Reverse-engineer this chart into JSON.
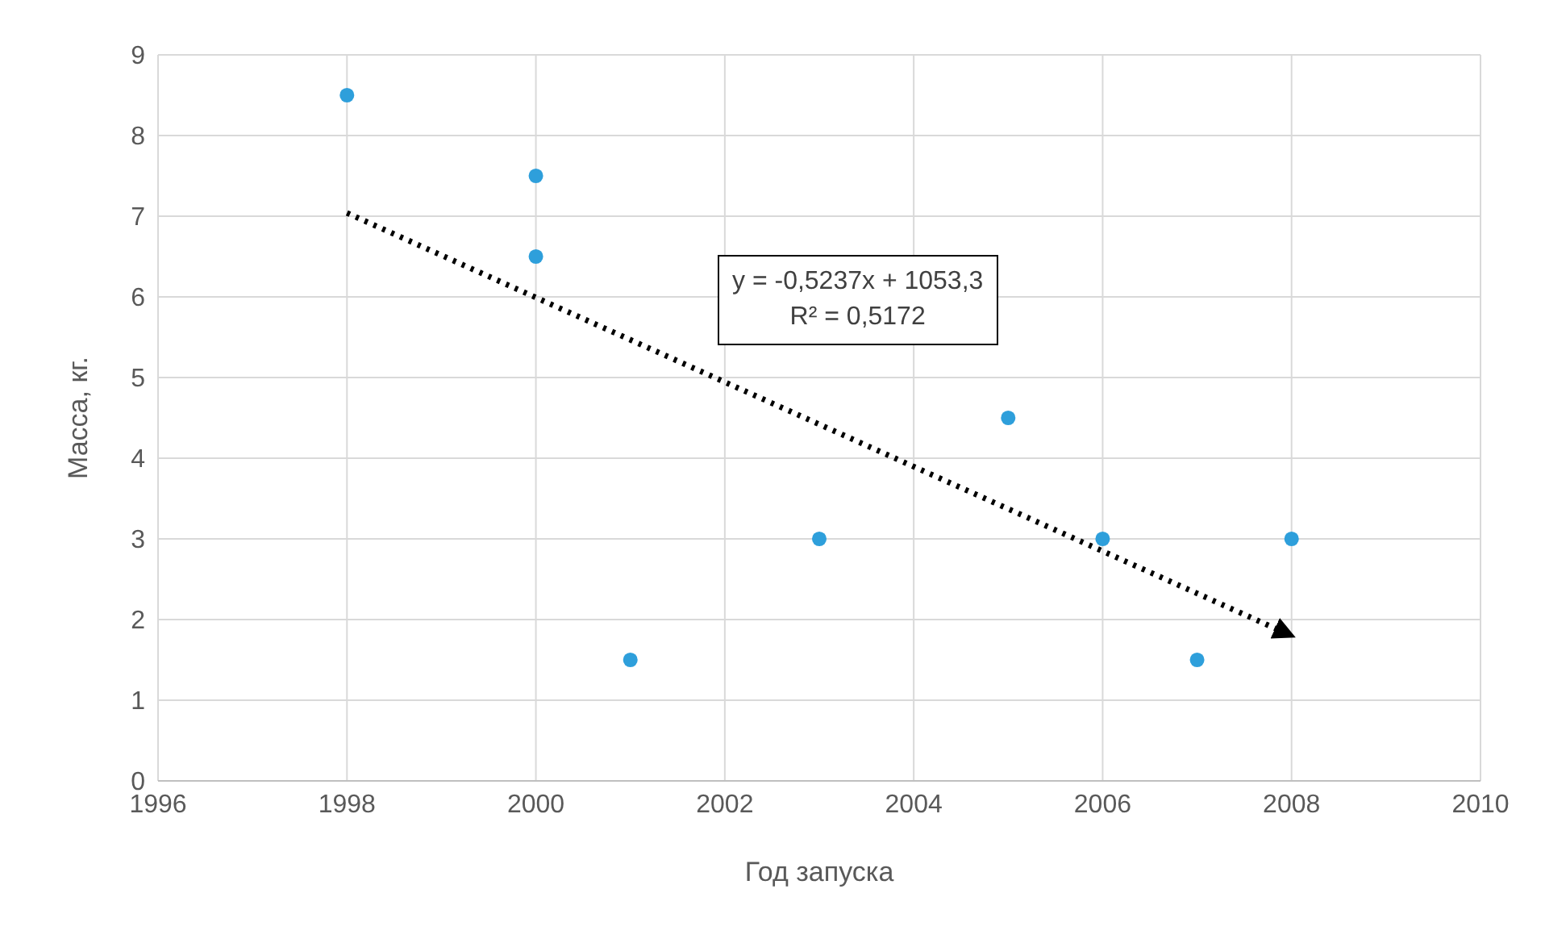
{
  "chart_data": {
    "type": "scatter",
    "xlabel": "Год запуска",
    "ylabel": "Масса, кг.",
    "x": [
      1998,
      2000,
      2000,
      2001,
      2003,
      2005,
      2006,
      2007,
      2008
    ],
    "series": [
      {
        "color": "#2e9fdb",
        "values": [
          8.5,
          7.5,
          6.5,
          1.5,
          3,
          4.5,
          3,
          1.5,
          3
        ],
        "marker": "circle"
      },
      {
        "type": "line",
        "color": "#000000",
        "x": [
          1998,
          2008
        ],
        "values": [
          7.04,
          1.8
        ],
        "line_style": "dotted",
        "marker": "none"
      }
    ],
    "annotations": [
      "y = -0,5237x + 1053,3",
      "R² = 0,5172"
    ],
    "xlim": [
      1996,
      2010
    ],
    "xticks": [
      1996,
      1998,
      2000,
      2002,
      2004,
      2006,
      2008,
      2010
    ],
    "ylim": [
      0,
      9
    ],
    "yticks": [
      0,
      1,
      2,
      3,
      4,
      5,
      6,
      7,
      8,
      9
    ],
    "grid": true
  }
}
